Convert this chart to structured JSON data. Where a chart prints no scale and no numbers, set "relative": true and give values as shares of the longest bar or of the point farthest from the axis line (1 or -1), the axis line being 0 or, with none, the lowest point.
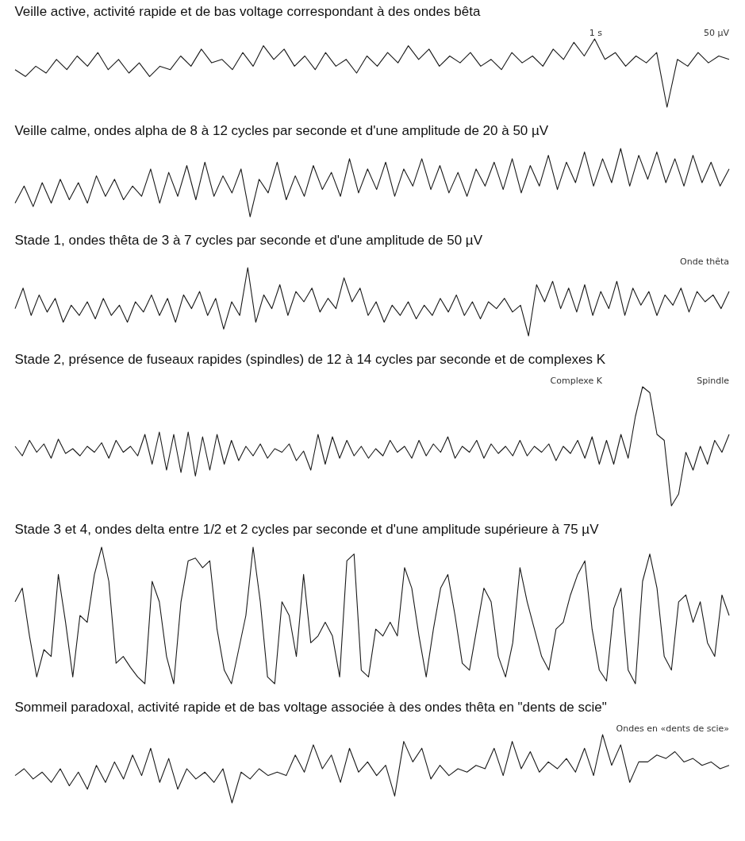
{
  "chart_data": [
    {
      "type": "line",
      "relative": true,
      "title": "Veille active, activité rapide et de bas voltage correspondant à des ondes bêta",
      "annotations": [
        "50 µV",
        "1 s"
      ],
      "categories": [
        null,
        null,
        null,
        null,
        null,
        null,
        null,
        null,
        null,
        null,
        null,
        null,
        null,
        null,
        null,
        null,
        null,
        null,
        null,
        null,
        null,
        null,
        null,
        null,
        null,
        null,
        null,
        null,
        null,
        null,
        null,
        null,
        null,
        null,
        null,
        null,
        null,
        null,
        null,
        null,
        null,
        null,
        null,
        null,
        null,
        null,
        null,
        null,
        null,
        null,
        null,
        null,
        null,
        null,
        null,
        null,
        null,
        null,
        null,
        null,
        null,
        null,
        null,
        null,
        null,
        null,
        null,
        null,
        null,
        null
      ],
      "series": [
        {
          "color": "#1a1a1a",
          "values": [
            0.55,
            0.45,
            0.6,
            0.5,
            0.7,
            0.55,
            0.75,
            0.6,
            0.8,
            0.55,
            0.7,
            0.5,
            0.65,
            0.45,
            0.6,
            0.55,
            0.75,
            0.6,
            0.85,
            0.65,
            0.7,
            0.55,
            0.8,
            0.6,
            0.9,
            0.7,
            0.85,
            0.6,
            0.75,
            0.55,
            0.8,
            0.6,
            0.7,
            0.5,
            0.75,
            0.6,
            0.8,
            0.65,
            0.9,
            0.7,
            0.85,
            0.6,
            0.75,
            0.65,
            0.8,
            0.6,
            0.7,
            0.55,
            0.8,
            0.65,
            0.75,
            0.6,
            0.85,
            0.7,
            0.95,
            0.75,
            1,
            0.7,
            0.8,
            0.6,
            0.75,
            0.65,
            0.8,
            0,
            0.7,
            0.6,
            0.8,
            0.65,
            0.75,
            0.7
          ]
        }
      ],
      "tick_labels": false
    },
    {
      "type": "line",
      "relative": true,
      "title": "Veille calme, ondes alpha de 8 à 12 cycles par seconde et d'une amplitude de 20 à 50 µV",
      "categories": [
        null,
        null,
        null,
        null,
        null,
        null,
        null,
        null,
        null,
        null,
        null,
        null,
        null,
        null,
        null,
        null,
        null,
        null,
        null,
        null,
        null,
        null,
        null,
        null,
        null,
        null,
        null,
        null,
        null,
        null,
        null,
        null,
        null,
        null,
        null,
        null,
        null,
        null,
        null,
        null,
        null,
        null,
        null,
        null,
        null,
        null,
        null,
        null,
        null,
        null,
        null,
        null,
        null,
        null,
        null,
        null,
        null,
        null,
        null,
        null,
        null,
        null,
        null,
        null,
        null,
        null,
        null,
        null,
        null,
        null,
        null,
        null,
        null,
        null,
        null,
        null,
        null,
        null,
        null,
        null
      ],
      "series": [
        {
          "color": "#1a1a1a",
          "values": [
            0.2,
            0.45,
            0.15,
            0.5,
            0.2,
            0.55,
            0.25,
            0.5,
            0.2,
            0.6,
            0.3,
            0.55,
            0.25,
            0.45,
            0.3,
            0.7,
            0.2,
            0.65,
            0.3,
            0.75,
            0.25,
            0.8,
            0.3,
            0.6,
            0.35,
            0.7,
            0,
            0.55,
            0.35,
            0.8,
            0.25,
            0.6,
            0.3,
            0.75,
            0.4,
            0.65,
            0.3,
            0.85,
            0.35,
            0.7,
            0.4,
            0.8,
            0.3,
            0.7,
            0.45,
            0.85,
            0.4,
            0.75,
            0.35,
            0.65,
            0.3,
            0.7,
            0.45,
            0.8,
            0.4,
            0.85,
            0.35,
            0.75,
            0.45,
            0.9,
            0.4,
            0.8,
            0.5,
            0.95,
            0.45,
            0.85,
            0.5,
            1,
            0.45,
            0.9,
            0.55,
            0.95,
            0.5,
            0.85,
            0.45,
            0.9,
            0.5,
            0.8,
            0.45,
            0.7
          ]
        }
      ],
      "tick_labels": false
    },
    {
      "type": "line",
      "relative": true,
      "title": "Stade 1, ondes thêta de 3 à 7 cycles par seconde et d'une amplitude de 50 µV",
      "annotations": [
        "Onde thêta"
      ],
      "categories": [
        null,
        null,
        null,
        null,
        null,
        null,
        null,
        null,
        null,
        null,
        null,
        null,
        null,
        null,
        null,
        null,
        null,
        null,
        null,
        null,
        null,
        null,
        null,
        null,
        null,
        null,
        null,
        null,
        null,
        null,
        null,
        null,
        null,
        null,
        null,
        null,
        null,
        null,
        null,
        null,
        null,
        null,
        null,
        null,
        null,
        null,
        null,
        null,
        null,
        null,
        null,
        null,
        null,
        null,
        null,
        null,
        null,
        null,
        null,
        null,
        null,
        null,
        null,
        null,
        null,
        null,
        null,
        null,
        null,
        null,
        null,
        null,
        null,
        null,
        null,
        null,
        null,
        null,
        null,
        null,
        null,
        null,
        null,
        null,
        null,
        null,
        null,
        null,
        null,
        null
      ],
      "series": [
        {
          "color": "#1a1a1a",
          "values": [
            0.4,
            0.7,
            0.3,
            0.6,
            0.35,
            0.55,
            0.2,
            0.45,
            0.3,
            0.5,
            0.25,
            0.55,
            0.3,
            0.45,
            0.2,
            0.5,
            0.35,
            0.6,
            0.3,
            0.55,
            0.2,
            0.6,
            0.4,
            0.65,
            0.3,
            0.55,
            0.1,
            0.5,
            0.3,
            1,
            0.2,
            0.6,
            0.4,
            0.75,
            0.3,
            0.65,
            0.5,
            0.7,
            0.35,
            0.55,
            0.4,
            0.85,
            0.5,
            0.7,
            0.3,
            0.5,
            0.2,
            0.45,
            0.3,
            0.5,
            0.25,
            0.45,
            0.3,
            0.55,
            0.35,
            0.6,
            0.3,
            0.5,
            0.25,
            0.5,
            0.4,
            0.55,
            0.35,
            0.45,
            0,
            0.75,
            0.5,
            0.8,
            0.4,
            0.7,
            0.35,
            0.75,
            0.3,
            0.65,
            0.4,
            0.8,
            0.3,
            0.7,
            0.45,
            0.65,
            0.3,
            0.6,
            0.45,
            0.7,
            0.35,
            0.65,
            0.5,
            0.6,
            0.4,
            0.65
          ]
        }
      ],
      "tick_labels": false
    },
    {
      "type": "line",
      "relative": true,
      "title": "Stade 2, présence de fuseaux rapides (spindles) de 12 à 14 cycles par seconde et de complexes K",
      "annotations": [
        "Spindle",
        "Complexe K"
      ],
      "categories": [
        null,
        null,
        null,
        null,
        null,
        null,
        null,
        null,
        null,
        null,
        null,
        null,
        null,
        null,
        null,
        null,
        null,
        null,
        null,
        null,
        null,
        null,
        null,
        null,
        null,
        null,
        null,
        null,
        null,
        null,
        null,
        null,
        null,
        null,
        null,
        null,
        null,
        null,
        null,
        null,
        null,
        null,
        null,
        null,
        null,
        null,
        null,
        null,
        null,
        null,
        null,
        null,
        null,
        null,
        null,
        null,
        null,
        null,
        null,
        null,
        null,
        null,
        null,
        null,
        null,
        null,
        null,
        null,
        null,
        null,
        null,
        null,
        null,
        null,
        null,
        null,
        null,
        null,
        null,
        null,
        null,
        null,
        null,
        null,
        null,
        null,
        null,
        null,
        null,
        null,
        null,
        null,
        null,
        null,
        null,
        null,
        null,
        null,
        null,
        null
      ],
      "series": [
        {
          "color": "#1a1a1a",
          "values": [
            0.5,
            0.42,
            0.55,
            0.45,
            0.52,
            0.4,
            0.56,
            0.44,
            0.48,
            0.42,
            0.5,
            0.45,
            0.53,
            0.4,
            0.55,
            0.45,
            0.5,
            0.42,
            0.6,
            0.35,
            0.62,
            0.3,
            0.6,
            0.28,
            0.62,
            0.25,
            0.58,
            0.3,
            0.6,
            0.35,
            0.55,
            0.38,
            0.5,
            0.42,
            0.52,
            0.4,
            0.48,
            0.45,
            0.52,
            0.38,
            0.46,
            0.3,
            0.6,
            0.35,
            0.58,
            0.4,
            0.55,
            0.42,
            0.5,
            0.4,
            0.48,
            0.42,
            0.55,
            0.45,
            0.5,
            0.4,
            0.55,
            0.42,
            0.52,
            0.45,
            0.58,
            0.4,
            0.5,
            0.45,
            0.55,
            0.4,
            0.52,
            0.44,
            0.5,
            0.42,
            0.55,
            0.42,
            0.5,
            0.45,
            0.52,
            0.38,
            0.5,
            0.44,
            0.55,
            0.4,
            0.58,
            0.35,
            0.55,
            0.35,
            0.6,
            0.4,
            0.75,
            1,
            0.95,
            0.6,
            0.55,
            0,
            0.1,
            0.45,
            0.3,
            0.5,
            0.35,
            0.55,
            0.45,
            0.6
          ]
        }
      ],
      "tick_labels": false
    },
    {
      "type": "line",
      "relative": true,
      "title": "Stade 3 et 4, ondes delta entre 1/2 et 2 cycles par seconde et d'une amplitude supérieure à 75 µV",
      "categories": [
        null,
        null,
        null,
        null,
        null,
        null,
        null,
        null,
        null,
        null,
        null,
        null,
        null,
        null,
        null,
        null,
        null,
        null,
        null,
        null,
        null,
        null,
        null,
        null,
        null,
        null,
        null,
        null,
        null,
        null,
        null,
        null,
        null,
        null,
        null,
        null,
        null,
        null,
        null,
        null,
        null,
        null,
        null,
        null,
        null,
        null,
        null,
        null,
        null,
        null,
        null,
        null,
        null,
        null,
        null,
        null,
        null,
        null,
        null,
        null,
        null,
        null,
        null,
        null,
        null,
        null,
        null,
        null,
        null,
        null,
        null,
        null,
        null,
        null,
        null,
        null,
        null,
        null,
        null,
        null,
        null,
        null,
        null,
        null,
        null,
        null,
        null,
        null,
        null,
        null,
        null,
        null,
        null,
        null,
        null,
        null,
        null,
        null,
        null,
        null
      ],
      "series": [
        {
          "color": "#1a1a1a",
          "values": [
            0.6,
            0.7,
            0.35,
            0.05,
            0.25,
            0.2,
            0.8,
            0.45,
            0.05,
            0.5,
            0.45,
            0.8,
            1,
            0.75,
            0.15,
            0.2,
            0.12,
            0.05,
            0,
            0.75,
            0.6,
            0.2,
            0,
            0.6,
            0.9,
            0.92,
            0.85,
            0.9,
            0.4,
            0.1,
            0,
            0.25,
            0.5,
            1,
            0.6,
            0.05,
            0,
            0.6,
            0.5,
            0.2,
            0.8,
            0.3,
            0.35,
            0.45,
            0.35,
            0.05,
            0.9,
            0.95,
            0.1,
            0.05,
            0.4,
            0.35,
            0.45,
            0.35,
            0.85,
            0.7,
            0.35,
            0.05,
            0.4,
            0.7,
            0.8,
            0.5,
            0.15,
            0.1,
            0.4,
            0.7,
            0.6,
            0.2,
            0.05,
            0.3,
            0.85,
            0.6,
            0.4,
            0.2,
            0.1,
            0.4,
            0.45,
            0.65,
            0.8,
            0.9,
            0.4,
            0.1,
            0.02,
            0.55,
            0.7,
            0.1,
            0,
            0.75,
            0.95,
            0.7,
            0.2,
            0.1,
            0.6,
            0.65,
            0.45,
            0.6,
            0.3,
            0.2,
            0.65,
            0.5
          ]
        }
      ],
      "tick_labels": false
    },
    {
      "type": "line",
      "relative": true,
      "title": "Sommeil paradoxal, activité rapide et de bas voltage associée à des ondes thêta en \"dents de scie\"",
      "annotations": [
        "Ondes en «dents de scie»"
      ],
      "categories": [
        null,
        null,
        null,
        null,
        null,
        null,
        null,
        null,
        null,
        null,
        null,
        null,
        null,
        null,
        null,
        null,
        null,
        null,
        null,
        null,
        null,
        null,
        null,
        null,
        null,
        null,
        null,
        null,
        null,
        null,
        null,
        null,
        null,
        null,
        null,
        null,
        null,
        null,
        null,
        null,
        null,
        null,
        null,
        null,
        null,
        null,
        null,
        null,
        null,
        null,
        null,
        null,
        null,
        null,
        null,
        null,
        null,
        null,
        null,
        null,
        null,
        null,
        null,
        null,
        null,
        null,
        null,
        null,
        null,
        null,
        null,
        null,
        null,
        null,
        null,
        null,
        null,
        null,
        null,
        null
      ],
      "series": [
        {
          "color": "#1a1a1a",
          "values": [
            0.4,
            0.5,
            0.35,
            0.45,
            0.3,
            0.5,
            0.25,
            0.45,
            0.2,
            0.55,
            0.3,
            0.6,
            0.35,
            0.7,
            0.4,
            0.8,
            0.3,
            0.65,
            0.2,
            0.5,
            0.35,
            0.45,
            0.3,
            0.5,
            0,
            0.45,
            0.35,
            0.5,
            0.4,
            0.45,
            0.4,
            0.7,
            0.45,
            0.85,
            0.5,
            0.7,
            0.3,
            0.8,
            0.45,
            0.6,
            0.4,
            0.55,
            0.1,
            0.9,
            0.6,
            0.8,
            0.35,
            0.55,
            0.4,
            0.5,
            0.45,
            0.55,
            0.5,
            0.8,
            0.4,
            0.9,
            0.5,
            0.75,
            0.45,
            0.6,
            0.5,
            0.65,
            0.45,
            0.8,
            0.4,
            1,
            0.55,
            0.85,
            0.3,
            0.6,
            0.6,
            0.7,
            0.65,
            0.75,
            0.6,
            0.65,
            0.55,
            0.6,
            0.5,
            0.55
          ]
        }
      ],
      "tick_labels": false
    }
  ]
}
